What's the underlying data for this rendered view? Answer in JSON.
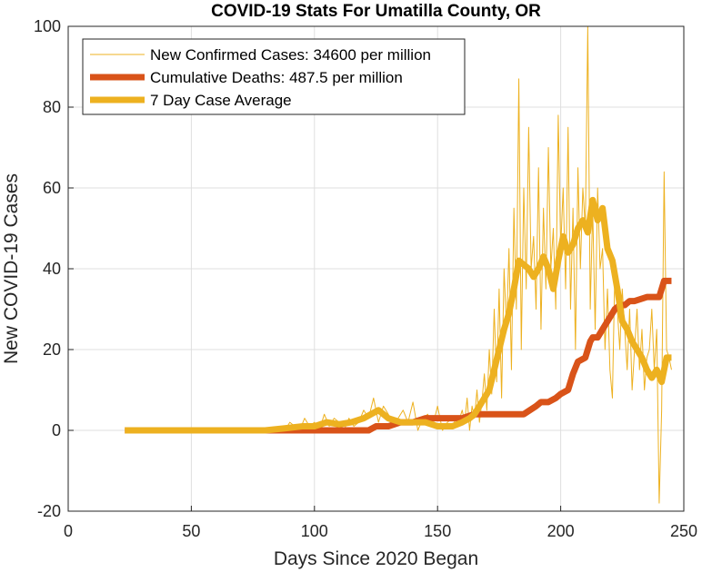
{
  "chart_data": {
    "type": "line",
    "title": "COVID-19 Stats For Umatilla County, OR",
    "xlabel": "Days Since 2020 Began",
    "ylabel": "New COVID-19 Cases",
    "xlim": [
      0,
      250
    ],
    "ylim": [
      -20,
      100
    ],
    "xticks": [
      0,
      50,
      100,
      150,
      200,
      250
    ],
    "yticks": [
      -20,
      0,
      20,
      40,
      60,
      80,
      100
    ],
    "grid": true,
    "legend_position": "top-left",
    "series": [
      {
        "name": "New Confirmed Cases: 34600 per million",
        "color": "#EDB120",
        "style": "thin",
        "x": [
          23,
          60,
          70,
          80,
          86,
          88,
          90,
          92,
          94,
          96,
          98,
          100,
          102,
          104,
          106,
          108,
          110,
          112,
          114,
          116,
          118,
          120,
          122,
          124,
          126,
          128,
          130,
          132,
          134,
          136,
          138,
          140,
          142,
          144,
          146,
          148,
          150,
          152,
          154,
          156,
          158,
          160,
          161,
          162,
          163,
          164,
          165,
          166,
          167,
          168,
          169,
          170,
          171,
          172,
          173,
          174,
          175,
          176,
          177,
          178,
          179,
          180,
          181,
          182,
          183,
          184,
          185,
          186,
          187,
          188,
          189,
          190,
          191,
          192,
          193,
          194,
          195,
          196,
          197,
          198,
          199,
          200,
          201,
          202,
          203,
          204,
          205,
          206,
          207,
          208,
          209,
          210,
          211,
          212,
          213,
          214,
          215,
          216,
          217,
          218,
          219,
          220,
          221,
          222,
          223,
          224,
          225,
          226,
          227,
          228,
          229,
          230,
          231,
          232,
          233,
          234,
          235,
          236,
          237,
          238,
          239,
          240,
          241,
          242,
          243,
          244,
          245
        ],
        "y": [
          0,
          0,
          0,
          0,
          1,
          0,
          2,
          1,
          0,
          3,
          1,
          2,
          0,
          4,
          1,
          3,
          2,
          0,
          3,
          1,
          2,
          5,
          3,
          8,
          2,
          6,
          4,
          1,
          3,
          5,
          2,
          7,
          0,
          3,
          4,
          1,
          6,
          0,
          2,
          3,
          1,
          5,
          2,
          8,
          0,
          6,
          3,
          10,
          2,
          7,
          14,
          5,
          20,
          9,
          30,
          12,
          35,
          8,
          40,
          25,
          45,
          15,
          55,
          30,
          87,
          20,
          60,
          35,
          75,
          40,
          48,
          30,
          65,
          25,
          55,
          35,
          70,
          40,
          50,
          30,
          78,
          45,
          60,
          35,
          75,
          30,
          55,
          20,
          65,
          40,
          60,
          50,
          100,
          30,
          55,
          25,
          60,
          40,
          45,
          20,
          35,
          15,
          8,
          40,
          30,
          20,
          35,
          25,
          15,
          30,
          10,
          20,
          30,
          15,
          25,
          10,
          18,
          20,
          30,
          15,
          25,
          -18,
          5,
          64,
          20,
          18,
          15
        ]
      },
      {
        "name": "Cumulative Deaths: 487.5 per million",
        "color": "#D95319",
        "style": "thick",
        "x": [
          23,
          60,
          80,
          90,
          100,
          115,
          122,
          125,
          130,
          135,
          140,
          145,
          150,
          155,
          160,
          165,
          170,
          175,
          180,
          185,
          190,
          192,
          195,
          198,
          200,
          203,
          205,
          207,
          210,
          212,
          213,
          215,
          217,
          218,
          220,
          222,
          224,
          226,
          228,
          230,
          235,
          240,
          242,
          245
        ],
        "y": [
          0,
          0,
          0,
          0,
          0,
          0,
          0,
          1,
          1,
          2,
          2,
          3,
          3,
          3,
          3,
          4,
          4,
          4,
          4,
          4,
          6,
          7,
          7,
          8,
          9,
          10,
          14,
          17,
          18,
          22,
          23,
          23,
          25,
          26,
          28,
          30,
          31,
          31,
          32,
          32,
          33,
          33,
          37,
          37
        ]
      },
      {
        "name": "7 Day Case Average",
        "color": "#EDB120",
        "style": "thick",
        "x": [
          23,
          60,
          80,
          88,
          95,
          100,
          105,
          110,
          115,
          120,
          123,
          126,
          128,
          130,
          135,
          140,
          145,
          150,
          153,
          156,
          160,
          163,
          165,
          167,
          169,
          171,
          173,
          175,
          177,
          179,
          181,
          183,
          185,
          187,
          189,
          191,
          193,
          195,
          197,
          199,
          201,
          203,
          205,
          207,
          209,
          211,
          213,
          215,
          217,
          219,
          221,
          223,
          225,
          227,
          229,
          231,
          233,
          235,
          237,
          239,
          241,
          243,
          245
        ],
        "y": [
          0,
          0,
          0,
          0.5,
          1,
          1,
          2,
          1.5,
          2,
          3,
          4,
          5,
          4,
          3,
          2,
          2,
          2,
          1,
          1,
          1,
          2,
          3,
          4,
          6,
          8,
          10,
          15,
          20,
          25,
          29,
          35,
          42,
          41,
          40,
          38,
          40,
          43,
          40,
          35,
          42,
          48,
          44,
          46,
          50,
          52,
          49,
          57,
          52,
          55,
          45,
          42,
          35,
          27,
          25,
          22,
          20,
          18,
          15,
          13,
          15,
          12,
          18,
          18
        ]
      }
    ]
  }
}
